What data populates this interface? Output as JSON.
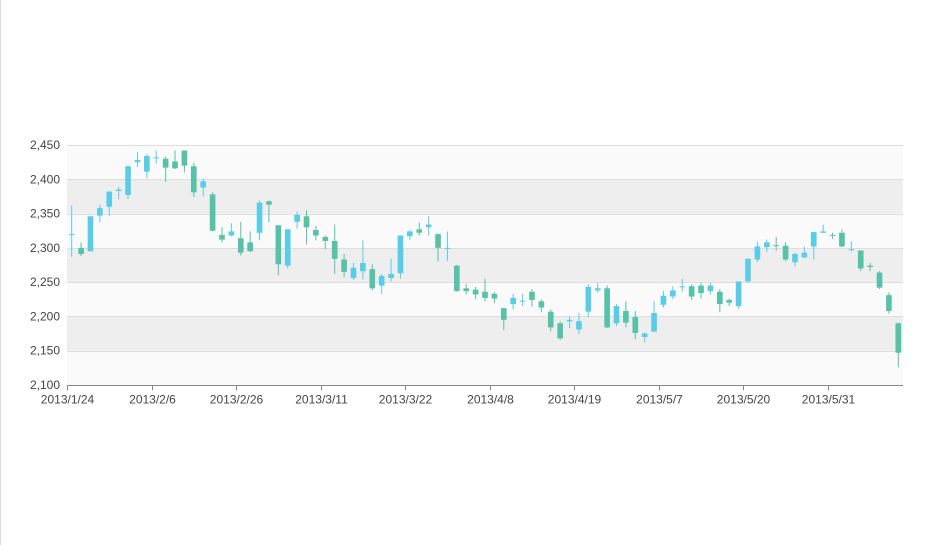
{
  "chart_data": {
    "type": "candlestick",
    "x_tick_labels": [
      "2013/1/24",
      "2013/2/6",
      "2013/2/26",
      "2013/3/11",
      "2013/3/22",
      "2013/4/8",
      "2013/4/19",
      "2013/5/7",
      "2013/5/20",
      "2013/5/31"
    ],
    "x_tick_index": [
      0,
      9,
      18,
      27,
      36,
      45,
      54,
      63,
      72,
      81
    ],
    "y_ticks": [
      "2,100",
      "2,150",
      "2,200",
      "2,250",
      "2,300",
      "2,350",
      "2,400",
      "2,450"
    ],
    "y_tick_values": [
      2100,
      2150,
      2200,
      2250,
      2300,
      2350,
      2400,
      2450
    ],
    "ylim": [
      2100,
      2450
    ],
    "grid": "alternating horizontal bands",
    "colors": {
      "up": "#59cce8",
      "down": "#57c2a8",
      "band": "#eeeeee",
      "axis": "#888888",
      "gridline": "#dedede"
    },
    "candles": [
      [
        2320,
        2320,
        2287,
        2362
      ],
      [
        2300,
        2291,
        2288,
        2308
      ],
      [
        2295,
        2346,
        2295,
        2346
      ],
      [
        2347,
        2358,
        2337,
        2363
      ],
      [
        2360,
        2382,
        2347,
        2383
      ],
      [
        2383,
        2385,
        2371,
        2389
      ],
      [
        2377,
        2419,
        2371,
        2420
      ],
      [
        2425,
        2428,
        2418,
        2440
      ],
      [
        2411,
        2434,
        2402,
        2437
      ],
      [
        2432,
        2432,
        2423,
        2442
      ],
      [
        2430,
        2417,
        2396,
        2433
      ],
      [
        2426,
        2416,
        2415,
        2442
      ],
      [
        2442,
        2420,
        2410,
        2442
      ],
      [
        2419,
        2381,
        2374,
        2424
      ],
      [
        2388,
        2397,
        2375,
        2401
      ],
      [
        2378,
        2325,
        2324,
        2381
      ],
      [
        2319,
        2312,
        2308,
        2330
      ],
      [
        2318,
        2324,
        2317,
        2336
      ],
      [
        2314,
        2293,
        2289,
        2338
      ],
      [
        2308,
        2295,
        2294,
        2324
      ],
      [
        2322,
        2366,
        2311,
        2369
      ],
      [
        2368,
        2363,
        2337,
        2369
      ],
      [
        2333,
        2276,
        2260,
        2333
      ],
      [
        2274,
        2327,
        2270,
        2327
      ],
      [
        2338,
        2348,
        2328,
        2353
      ],
      [
        2346,
        2330,
        2305,
        2355
      ],
      [
        2326,
        2318,
        2311,
        2332
      ],
      [
        2316,
        2310,
        2298,
        2318
      ],
      [
        2310,
        2284,
        2262,
        2334
      ],
      [
        2283,
        2265,
        2257,
        2291
      ],
      [
        2256,
        2271,
        2253,
        2278
      ],
      [
        2266,
        2278,
        2254,
        2311
      ],
      [
        2269,
        2241,
        2238,
        2276
      ],
      [
        2245,
        2259,
        2233,
        2262
      ],
      [
        2256,
        2262,
        2251,
        2284
      ],
      [
        2263,
        2318,
        2255,
        2318
      ],
      [
        2317,
        2324,
        2312,
        2326
      ],
      [
        2327,
        2322,
        2318,
        2337
      ],
      [
        2330,
        2334,
        2318,
        2346
      ],
      [
        2320,
        2300,
        2280,
        2321
      ],
      [
        2300,
        2300,
        2281,
        2324
      ],
      [
        2274,
        2237,
        2236,
        2275
      ],
      [
        2241,
        2237,
        2232,
        2248
      ],
      [
        2239,
        2232,
        2225,
        2243
      ],
      [
        2236,
        2227,
        2222,
        2255
      ],
      [
        2233,
        2226,
        2219,
        2236
      ],
      [
        2212,
        2195,
        2180,
        2212
      ],
      [
        2218,
        2227,
        2210,
        2233
      ],
      [
        2222,
        2223,
        2215,
        2233
      ],
      [
        2236,
        2224,
        2214,
        2240
      ],
      [
        2222,
        2213,
        2206,
        2225
      ],
      [
        2207,
        2184,
        2178,
        2210
      ],
      [
        2190,
        2168,
        2166,
        2193
      ],
      [
        2193,
        2195,
        2183,
        2200
      ],
      [
        2181,
        2193,
        2174,
        2205
      ],
      [
        2207,
        2243,
        2199,
        2247
      ],
      [
        2238,
        2241,
        2235,
        2249
      ],
      [
        2241,
        2184,
        2183,
        2245
      ],
      [
        2190,
        2215,
        2186,
        2218
      ],
      [
        2208,
        2191,
        2184,
        2222
      ],
      [
        2199,
        2176,
        2167,
        2208
      ],
      [
        2170,
        2175,
        2162,
        2177
      ],
      [
        2178,
        2205,
        2177,
        2222
      ],
      [
        2217,
        2230,
        2213,
        2237
      ],
      [
        2229,
        2238,
        2225,
        2244
      ],
      [
        2243,
        2244,
        2236,
        2255
      ],
      [
        2244,
        2229,
        2224,
        2247
      ],
      [
        2245,
        2234,
        2226,
        2249
      ],
      [
        2237,
        2245,
        2232,
        2249
      ],
      [
        2236,
        2218,
        2206,
        2240
      ],
      [
        2224,
        2220,
        2215,
        2226
      ],
      [
        2215,
        2251,
        2211,
        2251
      ],
      [
        2251,
        2284,
        2249,
        2285
      ],
      [
        2283,
        2302,
        2279,
        2309
      ],
      [
        2301,
        2308,
        2294,
        2312
      ],
      [
        2304,
        2303,
        2296,
        2316
      ],
      [
        2303,
        2283,
        2280,
        2308
      ],
      [
        2279,
        2291,
        2273,
        2293
      ],
      [
        2286,
        2293,
        2285,
        2302
      ],
      [
        2302,
        2323,
        2283,
        2323
      ],
      [
        2322,
        2324,
        2322,
        2334
      ],
      [
        2319,
        2318,
        2313,
        2322
      ],
      [
        2322,
        2302,
        2301,
        2327
      ],
      [
        2298,
        2298,
        2295,
        2310
      ],
      [
        2296,
        2270,
        2266,
        2297
      ],
      [
        2274,
        2272,
        2266,
        2278
      ],
      [
        2264,
        2242,
        2240,
        2266
      ],
      [
        2231,
        2208,
        2204,
        2235
      ],
      [
        2190,
        2147,
        2126,
        2191
      ]
    ]
  }
}
